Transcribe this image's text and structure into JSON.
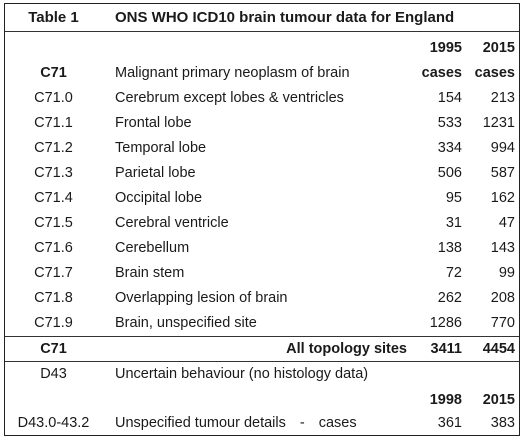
{
  "table": {
    "number": "Table 1",
    "title": "ONS WHO ICD10 brain tumour data for England",
    "header_years": [
      "1995",
      "2015"
    ],
    "header_units": [
      "cases",
      "cases"
    ],
    "group_code": "C71",
    "group_label": "Malignant primary neoplasm of brain",
    "rows": [
      {
        "code": "C71.0",
        "label": "Cerebrum except lobes & ventricles",
        "y1995": "154",
        "y2015": "213"
      },
      {
        "code": "C71.1",
        "label": "Frontal lobe",
        "y1995": "533",
        "y2015": "1231"
      },
      {
        "code": "C71.2",
        "label": "Temporal lobe",
        "y1995": "334",
        "y2015": "994"
      },
      {
        "code": "C71.3",
        "label": "Parietal lobe",
        "y1995": "506",
        "y2015": "587"
      },
      {
        "code": "C71.4",
        "label": "Occipital lobe",
        "y1995": "95",
        "y2015": "162"
      },
      {
        "code": "C71.5",
        "label": "Cerebral ventricle",
        "y1995": "31",
        "y2015": "47"
      },
      {
        "code": "C71.6",
        "label": "Cerebellum",
        "y1995": "138",
        "y2015": "143"
      },
      {
        "code": "C71.7",
        "label": "Brain stem",
        "y1995": "72",
        "y2015": "99"
      },
      {
        "code": "C71.8",
        "label": "Overlapping lesion of brain",
        "y1995": "262",
        "y2015": "208"
      },
      {
        "code": "C71.9",
        "label": "Brain, unspecified site",
        "y1995": "1286",
        "y2015": "770"
      }
    ],
    "total": {
      "code": "C71",
      "label": "All topology sites",
      "y1995": "3411",
      "y2015": "4454"
    },
    "d43": {
      "code": "D43",
      "label": "Uncertain behaviour (no histology data)"
    },
    "d43_years": [
      "1998",
      "2015"
    ],
    "d43_row": {
      "code": "D43.0-43.2",
      "label": "Unspecified tumour details",
      "dash": "-",
      "unit": "cases",
      "y1998": "361",
      "y2015": "383"
    }
  }
}
